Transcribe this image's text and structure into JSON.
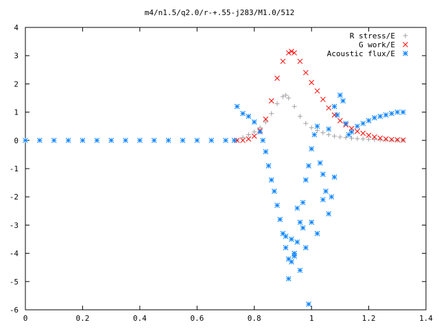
{
  "chart_data": {
    "type": "scatter",
    "title": "m4/n1.5/q2.0/r-+.55-j283/M1.0/512",
    "xlabel": "",
    "ylabel": "",
    "xlim": [
      0,
      1.4
    ],
    "ylim": [
      -6,
      4
    ],
    "x_ticks": [
      "0",
      "0.2",
      "0.4",
      "0.6",
      "0.8",
      "1",
      "1.2",
      "1.4"
    ],
    "y_ticks": [
      "4",
      "3",
      "2",
      "1",
      "0",
      "-1",
      "-2",
      "-3",
      "-4",
      "-5",
      "-6"
    ],
    "grid": false,
    "legend_position": "top-right",
    "series": [
      {
        "name": "R stress/E",
        "marker": "+",
        "color": "#a0a0a0",
        "x": [
          0.74,
          0.76,
          0.78,
          0.8,
          0.82,
          0.84,
          0.86,
          0.88,
          0.9,
          0.91,
          0.92,
          0.94,
          0.96,
          0.98,
          1.0,
          1.02,
          1.04,
          1.06,
          1.08,
          1.1,
          1.12,
          1.14,
          1.16,
          1.18,
          1.2,
          1.22,
          1.24,
          1.26,
          1.28,
          1.3,
          1.32
        ],
        "y": [
          0.0,
          0.1,
          0.2,
          0.3,
          0.45,
          0.65,
          0.95,
          1.3,
          1.55,
          1.6,
          1.5,
          1.2,
          0.85,
          0.6,
          0.45,
          0.35,
          0.27,
          0.2,
          0.15,
          0.12,
          0.1,
          0.08,
          0.06,
          0.05,
          0.04,
          0.03,
          0.02,
          0.02,
          0.01,
          0.01,
          0.01
        ]
      },
      {
        "name": "G work/E",
        "marker": "x",
        "color": "#ff0000",
        "x": [
          0.74,
          0.76,
          0.78,
          0.8,
          0.82,
          0.84,
          0.86,
          0.88,
          0.9,
          0.92,
          0.93,
          0.94,
          0.96,
          0.98,
          1.0,
          1.02,
          1.04,
          1.06,
          1.08,
          1.1,
          1.12,
          1.14,
          1.16,
          1.18,
          1.2,
          1.22,
          1.24,
          1.26,
          1.28,
          1.3,
          1.32
        ],
        "y": [
          0.0,
          0.0,
          0.05,
          0.15,
          0.35,
          0.75,
          1.4,
          2.2,
          2.8,
          3.1,
          3.15,
          3.1,
          2.8,
          2.4,
          2.05,
          1.75,
          1.45,
          1.15,
          0.9,
          0.7,
          0.55,
          0.42,
          0.32,
          0.25,
          0.18,
          0.12,
          0.08,
          0.05,
          0.03,
          0.02,
          0.01
        ]
      },
      {
        "name": "Acoustic flux/E",
        "marker": "*",
        "color": "#0080ff",
        "x": [
          0.0,
          0.05,
          0.1,
          0.15,
          0.2,
          0.25,
          0.3,
          0.35,
          0.4,
          0.45,
          0.5,
          0.55,
          0.6,
          0.65,
          0.7,
          0.73,
          0.74,
          0.76,
          0.78,
          0.8,
          0.82,
          0.83,
          0.84,
          0.85,
          0.86,
          0.87,
          0.88,
          0.89,
          0.9,
          0.91,
          0.92,
          0.93,
          0.94,
          0.95,
          0.96,
          0.97,
          0.98,
          0.99,
          1.0,
          1.01,
          1.02,
          1.03,
          1.04,
          1.05,
          1.06,
          1.07,
          1.08,
          1.09,
          1.1,
          1.11,
          1.12,
          1.13,
          1.14,
          1.16,
          1.18,
          1.2,
          1.22,
          1.24,
          1.26,
          1.28,
          1.3,
          1.32,
          0.92,
          0.93,
          0.95,
          0.97,
          0.99,
          1.0,
          1.02,
          1.04,
          1.06,
          1.08,
          0.91,
          0.94,
          0.96,
          0.98
        ],
        "y": [
          0,
          0,
          0,
          0,
          0,
          0,
          0,
          0,
          0,
          0,
          0,
          0,
          0,
          0,
          0,
          0,
          1.2,
          0.95,
          0.85,
          0.65,
          0.3,
          0.0,
          -0.4,
          -0.9,
          -1.4,
          -1.8,
          -2.3,
          -2.8,
          -3.3,
          -3.8,
          -4.2,
          -4.3,
          -4.1,
          -3.6,
          -2.9,
          -2.2,
          -1.4,
          -0.9,
          -0.3,
          0.2,
          0.5,
          -0.8,
          -1.2,
          -1.8,
          -2.6,
          -2.0,
          -1.3,
          0.9,
          1.6,
          1.4,
          0.6,
          0.2,
          0.3,
          0.5,
          0.6,
          0.7,
          0.8,
          0.85,
          0.9,
          0.95,
          1.0,
          1.0,
          -4.9,
          -3.5,
          -2.4,
          -3.1,
          -5.8,
          -2.9,
          -3.3,
          -2.1,
          0.4,
          1.2,
          -3.4,
          -4.0,
          -4.6,
          -3.8
        ]
      }
    ]
  }
}
